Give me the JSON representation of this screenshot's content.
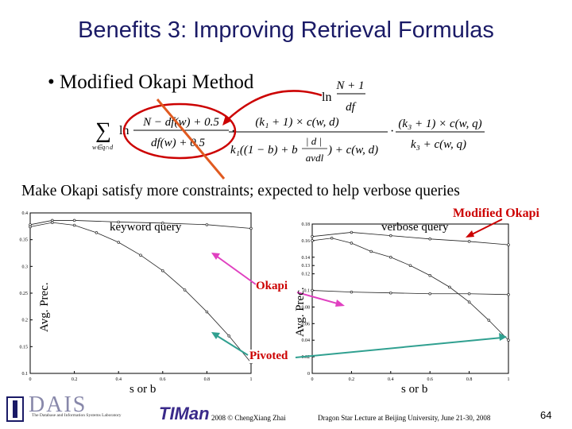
{
  "slide": {
    "title": "Benefits 3: Improving Retrieval Formulas",
    "bullet": "Modified Okapi Method",
    "subtitle": "Make Okapi satisfy more constraints; expected to help verbose queries",
    "page_number": "64"
  },
  "formula": {
    "sum": "∑",
    "sum_sub": "w∈q∩d",
    "ln_main": "ln",
    "ln_mod": "ln",
    "idf_num": "N − df(w) + 0.5",
    "idf_den": "df(w) + 0.5",
    "mod_num": "N + 1",
    "mod_den": "df",
    "tf_num": "(k₁ + 1) × c(w, d)",
    "tf_den_a": "k₁((1 − b) + b",
    "tf_den_frac_num": "| d |",
    "tf_den_frac_den": "avdl",
    "tf_den_b": ") + c(w, d)",
    "qtf_num": "(k₃ + 1) × c(w, q)",
    "qtf_den": "k₃ + c(w, q)",
    "dot": "·"
  },
  "labels": {
    "modified_okapi": "Modified Okapi",
    "okapi": "Okapi",
    "pivoted": "Pivoted"
  },
  "footer": {
    "dais_logo": "DAIS",
    "dais_lab": "The Database and Information Systems Laboratory",
    "timan_logo": "TIMan",
    "copyright": "2008 © ChengXiang Zhai",
    "lecture": "Dragon Star Lecture at Beijing University, June 21-30, 2008"
  },
  "colors": {
    "title": "#1a1a66",
    "arrow_red": "#cc0000",
    "arrow_orange": "#e05a20",
    "arrow_pink": "#e040c0",
    "arrow_teal": "#30a090"
  },
  "chart_data": [
    {
      "type": "line",
      "title": "keyword query",
      "xlabel": "s or b",
      "ylabel": "Avg. Prec.",
      "xlim": [
        0,
        1
      ],
      "ylim": [
        0.1,
        0.4
      ],
      "xticks": [
        "0",
        "0.2",
        "0.4",
        "0.6",
        "0.8",
        "1"
      ],
      "yticks": [
        "0.1",
        "0.15",
        "0.2",
        "0.25",
        "0.3",
        "0.35",
        "0.4"
      ],
      "series": [
        {
          "x": [
            0,
            0.1,
            0.2,
            0.4,
            0.6,
            0.8,
            1.0
          ],
          "values": [
            0.378,
            0.386,
            0.386,
            0.383,
            0.381,
            0.378,
            0.371
          ]
        },
        {
          "x": [
            0,
            0.1,
            0.2,
            0.3,
            0.4,
            0.5,
            0.6,
            0.7,
            0.8,
            0.9,
            1.0
          ],
          "values": [
            0.374,
            0.382,
            0.377,
            0.363,
            0.345,
            0.321,
            0.292,
            0.256,
            0.215,
            0.17,
            0.12
          ]
        }
      ]
    },
    {
      "type": "line",
      "title": "verbose query",
      "xlabel": "s or b",
      "ylabel": "Avg. Prec.",
      "xlim": [
        0,
        1
      ],
      "ylim": [
        0,
        0.18
      ],
      "xticks": [
        "0",
        "0.2",
        "0.4",
        "0.6",
        "0.8",
        "1"
      ],
      "yticks": [
        "0",
        "0.02",
        "0.04",
        "0.06",
        "0.08",
        "0.1",
        "0.12",
        "0.13",
        "0.14",
        "0.16",
        "0.18"
      ],
      "series": [
        {
          "x": [
            0,
            0.2,
            0.4,
            0.6,
            0.8,
            1.0
          ],
          "values": [
            0.165,
            0.17,
            0.166,
            0.162,
            0.159,
            0.155
          ]
        },
        {
          "x": [
            0,
            0.1,
            0.2,
            0.3,
            0.4,
            0.5,
            0.6,
            0.7,
            0.8,
            0.9,
            1.0
          ],
          "values": [
            0.16,
            0.163,
            0.157,
            0.147,
            0.14,
            0.13,
            0.118,
            0.104,
            0.086,
            0.064,
            0.04
          ]
        },
        {
          "x": [
            0,
            0.2,
            0.4,
            0.6,
            0.8,
            1.0
          ],
          "values": [
            0.1,
            0.098,
            0.097,
            0.096,
            0.096,
            0.095
          ]
        }
      ]
    }
  ]
}
